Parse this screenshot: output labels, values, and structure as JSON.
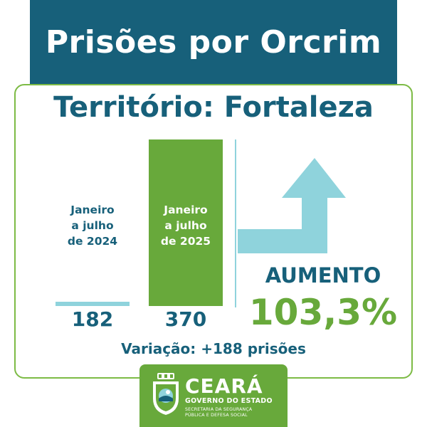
{
  "header": {
    "title": "Prisões por Orcrim"
  },
  "subtitle": "Território: Fortaleza",
  "colors": {
    "primary": "#17607a",
    "accent_green": "#68a93b",
    "light_blue": "#8fd3dc",
    "border_green": "#7dbb45"
  },
  "chart_data": {
    "type": "bar",
    "title": "Prisões por Orcrim",
    "subtitle": "Território: Fortaleza",
    "categories": [
      [
        "Janeiro",
        "a julho",
        "de 2024"
      ],
      [
        "Janeiro",
        "a julho",
        "de 2025"
      ]
    ],
    "values": [
      182,
      370
    ],
    "value_labels": [
      "182",
      "370"
    ],
    "colors": [
      "#8fd3dc",
      "#68a93b"
    ],
    "ylim": [
      0,
      370
    ],
    "grid": false,
    "legend": "none"
  },
  "summary": {
    "trend_label": "AUMENTO",
    "percent_label": "103,3%",
    "variation_label": "Variação: +188 prisões",
    "arrow_icon": "up-arrow-icon"
  },
  "footer": {
    "brand_name": "CEARÁ",
    "brand_sub": "GOVERNO DO ESTADO",
    "dept_line1": "SECRETARIA DA SEGURANÇA",
    "dept_line2": "PÚBLICA E DEFESA SOCIAL",
    "crest_icon": "state-crest-icon"
  }
}
